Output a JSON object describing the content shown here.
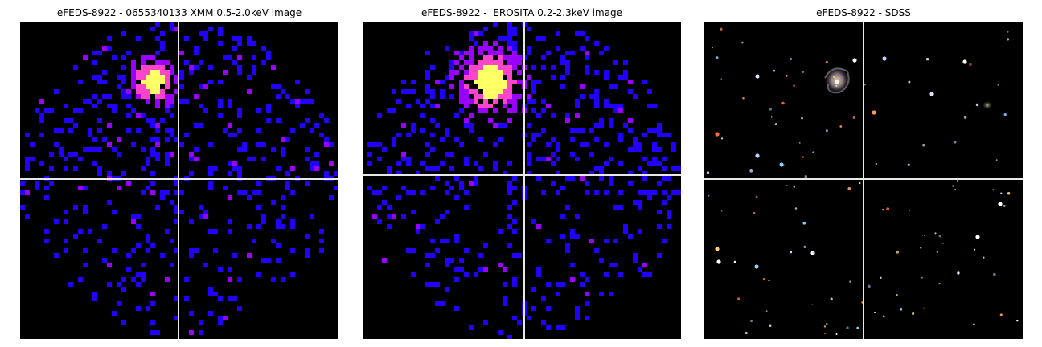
{
  "colors": {
    "background": "#000000",
    "crosshair": "#e8e8e8",
    "xray_base": "#2200ff",
    "xray_mid": "#9900ff",
    "xray_hot": "#ff44cc",
    "xray_peak": "#ffff66"
  },
  "panels": [
    {
      "title": "eFEDS-8922 - 0655340133 XMM 0.5-2.0keV image",
      "kind": "xray-counts-map",
      "band": "0.5-2.0keV",
      "instrument": "XMM"
    },
    {
      "title": "eFEDS-8922 -  EROSITA 0.2-2.3keV image",
      "kind": "xray-counts-map",
      "band": "0.2-2.3keV",
      "instrument": "EROSITA"
    },
    {
      "title": "eFEDS-8922 - SDSS",
      "kind": "optical-image",
      "instrument": "SDSS"
    }
  ]
}
